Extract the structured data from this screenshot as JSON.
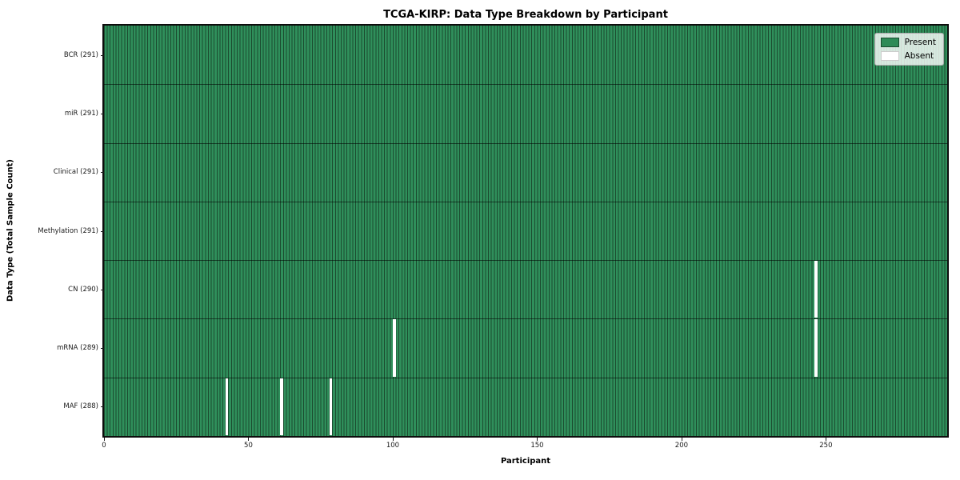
{
  "chart_data": {
    "type": "heatmap",
    "title": "TCGA-KIRP: Data Type Breakdown by Participant",
    "xlabel": "Participant",
    "ylabel": "Data Type (Total Sample Count)",
    "n_participants": 291,
    "x_range": [
      0,
      292
    ],
    "x_ticks": [
      0,
      50,
      100,
      150,
      200,
      250
    ],
    "grid": false,
    "legend_position": "upper right",
    "rows": [
      {
        "label": "BCR",
        "count": 291,
        "tick_label": "BCR (291)",
        "absent_participants": []
      },
      {
        "label": "miR",
        "count": 291,
        "tick_label": "miR (291)",
        "absent_participants": []
      },
      {
        "label": "Clinical",
        "count": 291,
        "tick_label": "Clinical (291)",
        "absent_participants": []
      },
      {
        "label": "Methylation",
        "count": 291,
        "tick_label": "Methylation (291)",
        "absent_participants": []
      },
      {
        "label": "CN",
        "count": 290,
        "tick_label": "CN (290)",
        "absent_participants": [
          246
        ]
      },
      {
        "label": "mRNA",
        "count": 289,
        "tick_label": "mRNA (289)",
        "absent_participants": [
          100,
          246
        ]
      },
      {
        "label": "MAF",
        "count": 288,
        "tick_label": "MAF (288)",
        "absent_participants": [
          42,
          61,
          78
        ]
      }
    ],
    "legend": [
      {
        "label": "Present",
        "color": "#2e8b57"
      },
      {
        "label": "Absent",
        "color": "#ffffff"
      }
    ],
    "colors": {
      "present_fill": "#2f8f5b",
      "cell_edge": "#1b4b2f",
      "absent_fill": "#ffffff",
      "row_separator": "#17321f",
      "axis_spine": "#0d0d0d"
    }
  }
}
